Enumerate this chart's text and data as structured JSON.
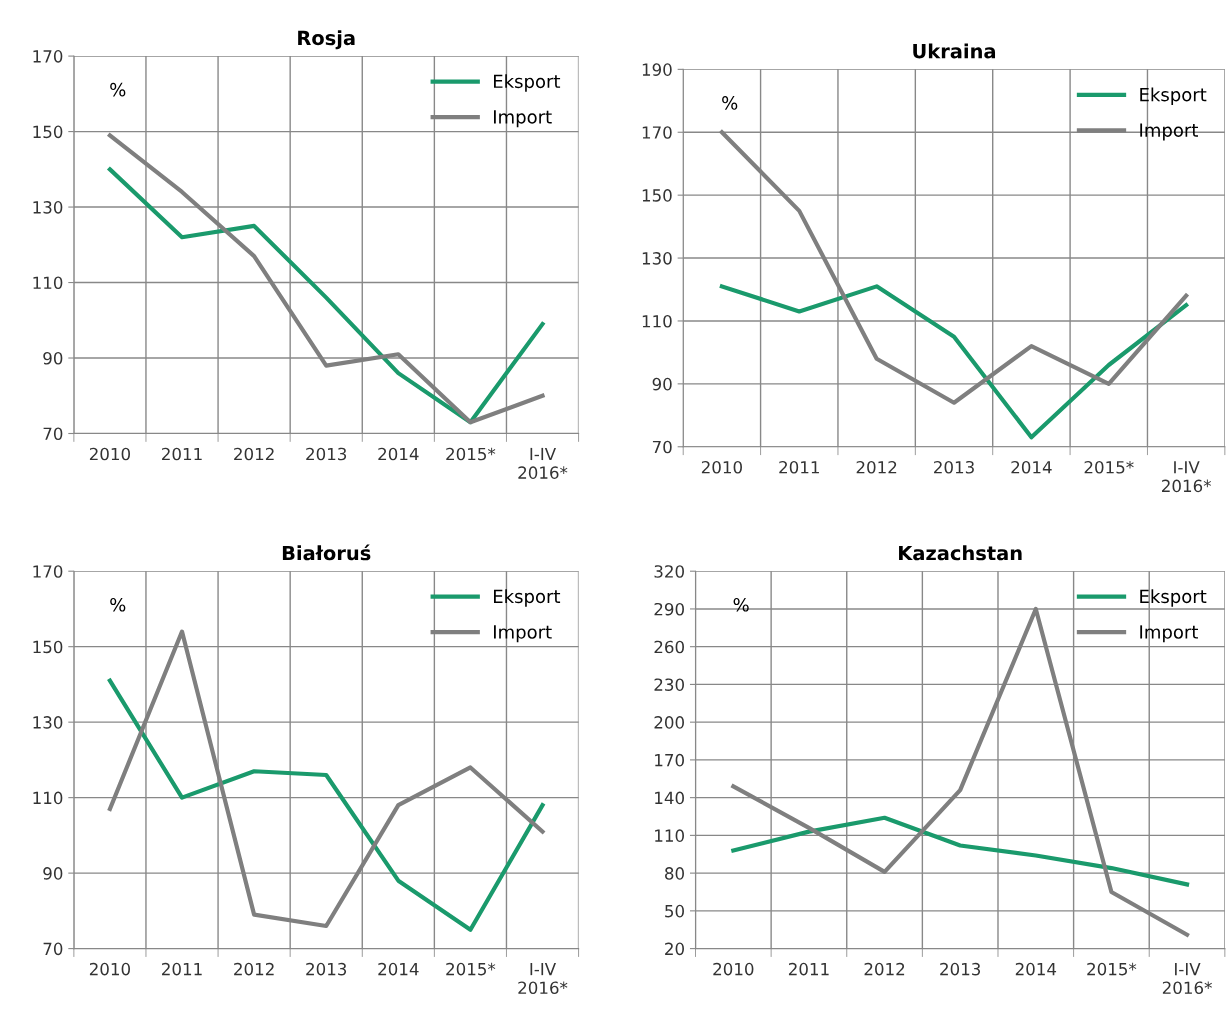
{
  "chart_data": [
    {
      "type": "line",
      "title": "Rosja",
      "ylabel": "%",
      "categories": [
        "2010",
        "2011",
        "2012",
        "2013",
        "2014",
        "2015*",
        "I-IV\n2016*"
      ],
      "ylim": [
        70,
        170
      ],
      "yticks": [
        70,
        90,
        110,
        130,
        150,
        170
      ],
      "grid": true,
      "legend": "top right",
      "series": [
        {
          "name": "Eksport",
          "color": "#1a9a6c",
          "values": [
            140,
            122,
            125,
            106,
            86,
            73,
            99
          ]
        },
        {
          "name": "Import",
          "color": "#7f7f7f",
          "values": [
            149,
            134,
            117,
            88,
            91,
            73,
            80
          ]
        }
      ]
    },
    {
      "type": "line",
      "title": "Ukraina",
      "ylabel": "%",
      "categories": [
        "2010",
        "2011",
        "2012",
        "2013",
        "2014",
        "2015*",
        "I-IV\n2016*"
      ],
      "ylim": [
        70,
        190
      ],
      "yticks": [
        70,
        90,
        110,
        130,
        150,
        170,
        190
      ],
      "grid": true,
      "legend": "top right",
      "series": [
        {
          "name": "Eksport",
          "color": "#1a9a6c",
          "values": [
            121,
            113,
            121,
            105,
            73,
            96,
            115
          ]
        },
        {
          "name": "Import",
          "color": "#7f7f7f",
          "values": [
            170,
            145,
            98,
            84,
            102,
            90,
            118
          ]
        }
      ]
    },
    {
      "type": "line",
      "title": "Białoruś",
      "ylabel": "%",
      "categories": [
        "2010",
        "2011",
        "2012",
        "2013",
        "2014",
        "2015*",
        "I-IV\n2016*"
      ],
      "ylim": [
        70,
        170
      ],
      "yticks": [
        70,
        90,
        110,
        130,
        150,
        170
      ],
      "grid": true,
      "legend": "top right",
      "series": [
        {
          "name": "Eksport",
          "color": "#1a9a6c",
          "values": [
            141,
            110,
            117,
            116,
            88,
            75,
            108
          ]
        },
        {
          "name": "Import",
          "color": "#7f7f7f",
          "values": [
            107,
            154,
            79,
            76,
            108,
            118,
            101
          ]
        }
      ]
    },
    {
      "type": "line",
      "title": "Kazachstan",
      "ylabel": "%",
      "categories": [
        "2010",
        "2011",
        "2012",
        "2013",
        "2014",
        "2015*",
        "I-IV\n2016*"
      ],
      "ylim": [
        20,
        320
      ],
      "yticks": [
        20,
        50,
        80,
        110,
        140,
        170,
        200,
        230,
        260,
        290,
        320
      ],
      "grid": true,
      "legend": "top right",
      "series": [
        {
          "name": "Eksport",
          "color": "#1a9a6c",
          "values": [
            98,
            113,
            124,
            102,
            94,
            84,
            71
          ]
        },
        {
          "name": "Import",
          "color": "#7f7f7f",
          "values": [
            149,
            116,
            81,
            146,
            290,
            65,
            31
          ]
        }
      ]
    }
  ]
}
